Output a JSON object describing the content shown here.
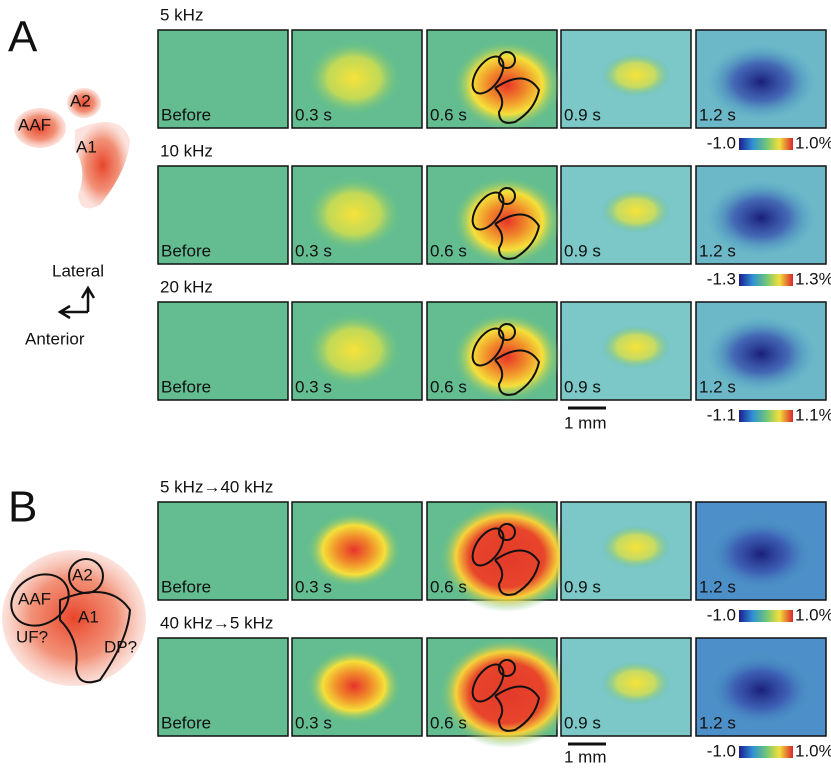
{
  "frame_labels": [
    "Before",
    "0.3 s",
    "0.6 s",
    "0.9 s",
    "1.2 s"
  ],
  "panel_a": {
    "label": "A",
    "diagram": {
      "aaf": "AAF",
      "a2": "A2",
      "a1": "A1"
    },
    "orientation": {
      "lateral": "Lateral",
      "anterior": "Anterior"
    },
    "rows": [
      {
        "title": "5 kHz",
        "scale_min": "-1.0",
        "scale_max": "1.0%"
      },
      {
        "title": "10 kHz",
        "scale_min": "-1.3",
        "scale_max": "1.3%"
      },
      {
        "title": "20 kHz",
        "scale_min": "-1.1",
        "scale_max": "1.1%"
      }
    ],
    "scale_bar": "1 mm"
  },
  "panel_b": {
    "label": "B",
    "diagram": {
      "aaf": "AAF",
      "a2": "A2",
      "a1": "A1",
      "uf": "UF?",
      "dp": "DP?"
    },
    "rows": [
      {
        "title": "5 kHz→40 kHz",
        "scale_min": "-1.0",
        "scale_max": "1.0%"
      },
      {
        "title": "40 kHz→5 kHz",
        "scale_min": "-1.0",
        "scale_max": "1.0%"
      }
    ],
    "scale_bar": "1 mm"
  }
}
